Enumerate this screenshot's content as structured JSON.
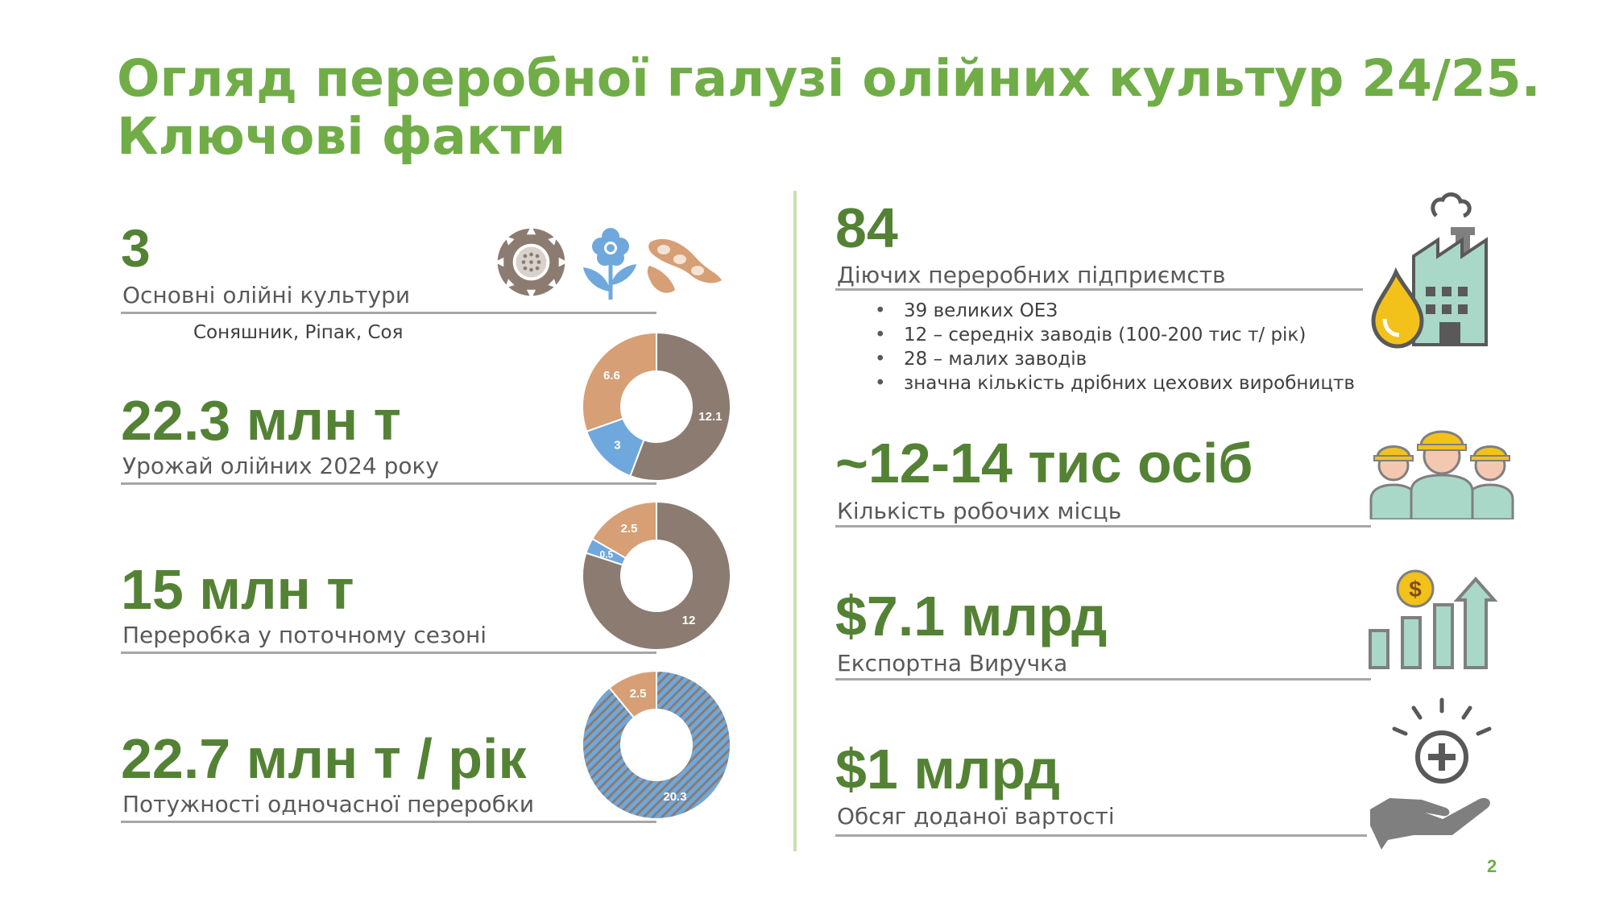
{
  "title": {
    "line1": "Огляд переробної галузі олійних культур 24/25.",
    "line2": "Ключові факти"
  },
  "left": {
    "crops": {
      "value": "3",
      "label": "Основні олійні культури",
      "detail": "Соняшник, Ріпак, Соя"
    },
    "harvest": {
      "value": "22.3 млн т",
      "label": "Урожай олійних 2024 року"
    },
    "processing": {
      "value": "15 млн т",
      "label": "Переробка у поточному сезоні"
    },
    "capacity": {
      "value": "22.7 млн т / рік",
      "label": "Потужності одночасної переробки"
    }
  },
  "right": {
    "enterprises": {
      "value": "84",
      "label": "Діючих переробних підприємств",
      "items": [
        "39 великих ОЕЗ",
        "12 – середніх заводів (100-200 тис т/ рік)",
        "28 – малих заводів",
        "значна кількість дрібних цехових виробництв"
      ]
    },
    "jobs": {
      "value": "~12-14 тис осіб",
      "label": "Кількість робочих місць"
    },
    "export": {
      "value": "$7.1 млрд",
      "label": "Експортна Виручка"
    },
    "added_value": {
      "value": "$1 млрд",
      "label": "Обсяг доданої вартості"
    }
  },
  "page_number": "2",
  "icons": [
    "sunflower-icon",
    "flower-icon",
    "soybean-icon",
    "factory-oil-icon",
    "workers-icon",
    "revenue-chart-icon",
    "hand-plus-icon"
  ],
  "colors": {
    "title": "#70ad47",
    "value": "#548235",
    "brown": "#8c7b70",
    "blue": "#6fa8dc",
    "tan": "#d69f75",
    "mint": "#a9d8c8",
    "gold": "#f2c21b"
  },
  "chart_data": [
    {
      "type": "pie",
      "title": "",
      "series": [
        {
          "values": [
            12.1,
            3,
            6.6
          ]
        }
      ],
      "labels": [
        "12.1",
        "3",
        "6.6"
      ],
      "colors": [
        "#8c7b70",
        "#6fa8dc",
        "#d69f75"
      ]
    },
    {
      "type": "pie",
      "title": "",
      "series": [
        {
          "values": [
            12,
            0.5,
            2.5
          ]
        }
      ],
      "labels": [
        "12",
        "0.5",
        "2.5"
      ],
      "colors": [
        "#8c7b70",
        "#6fa8dc",
        "#d69f75"
      ]
    },
    {
      "type": "pie",
      "title": "",
      "series": [
        {
          "values": [
            20.3,
            2.5
          ]
        }
      ],
      "labels": [
        "20.3",
        "2.5"
      ],
      "colors": [
        "#6fa8dc",
        "#d69f75"
      ],
      "hatched": [
        true,
        false
      ]
    }
  ]
}
